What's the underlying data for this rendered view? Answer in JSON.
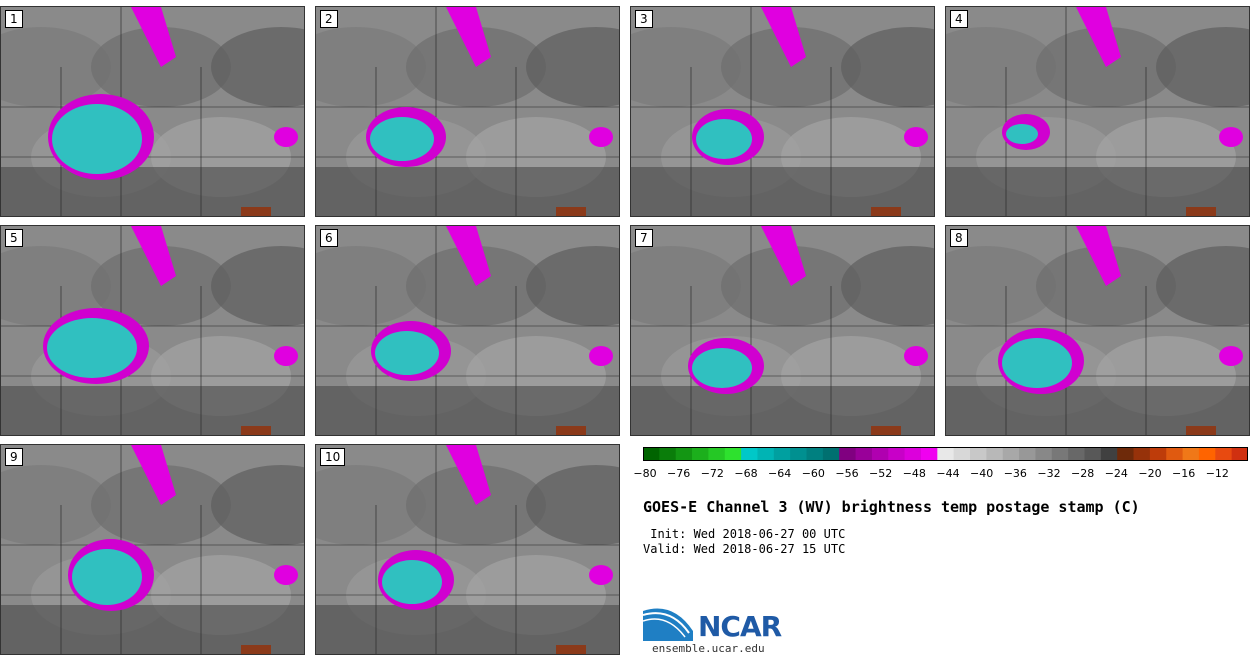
{
  "panels": [
    {
      "label": "1",
      "blob": {
        "cx": 100,
        "cy": 130,
        "rx": 45,
        "ry": 35
      }
    },
    {
      "label": "2",
      "blob": {
        "cx": 90,
        "cy": 130,
        "rx": 32,
        "ry": 22
      }
    },
    {
      "label": "3",
      "blob": {
        "cx": 97,
        "cy": 130,
        "rx": 28,
        "ry": 20
      }
    },
    {
      "label": "4",
      "blob": {
        "cx": 80,
        "cy": 125,
        "rx": 16,
        "ry": 10
      }
    },
    {
      "label": "5",
      "blob": {
        "cx": 95,
        "cy": 120,
        "rx": 45,
        "ry": 30
      }
    },
    {
      "label": "6",
      "blob": {
        "cx": 95,
        "cy": 125,
        "rx": 32,
        "ry": 22
      }
    },
    {
      "label": "7",
      "blob": {
        "cx": 95,
        "cy": 140,
        "rx": 30,
        "ry": 20
      }
    },
    {
      "label": "8",
      "blob": {
        "cx": 95,
        "cy": 135,
        "rx": 35,
        "ry": 25
      }
    },
    {
      "label": "9",
      "blob": {
        "cx": 110,
        "cy": 130,
        "rx": 35,
        "ry": 28
      }
    },
    {
      "label": "10",
      "blob": {
        "cx": 100,
        "cy": 135,
        "rx": 30,
        "ry": 22
      }
    }
  ],
  "colorbar": {
    "colors": [
      "#006400",
      "#0a7d0a",
      "#139613",
      "#1caf1c",
      "#25c825",
      "#2ee12e",
      "#00c8c8",
      "#00b4b4",
      "#00a0a0",
      "#009090",
      "#008080",
      "#007070",
      "#800080",
      "#990099",
      "#b000b0",
      "#c800c8",
      "#dc00dc",
      "#f000f0",
      "#e8e8e8",
      "#d8d8d8",
      "#c8c8c8",
      "#b8b8b8",
      "#a8a8a8",
      "#989898",
      "#888888",
      "#787878",
      "#686868",
      "#585858",
      "#404040",
      "#6e2a0a",
      "#96320a",
      "#be3c0a",
      "#e05a10",
      "#f07818",
      "#ff6400",
      "#e84a10",
      "#d03010"
    ],
    "ticks": [
      "−80",
      "−76",
      "−72",
      "−68",
      "−64",
      "−60",
      "−56",
      "−52",
      "−48",
      "−44",
      "−40",
      "−36",
      "−32",
      "−28",
      "−24",
      "−20",
      "−16",
      "−12"
    ]
  },
  "title": "GOES-E Channel 3 (WV) brightness temp postage stamp (C)",
  "init": " Init: Wed 2018-06-27 00 UTC",
  "valid": "Valid: Wed 2018-06-27 15 UTC",
  "logo_text": "NCAR",
  "url": "ensemble.ucar.edu"
}
